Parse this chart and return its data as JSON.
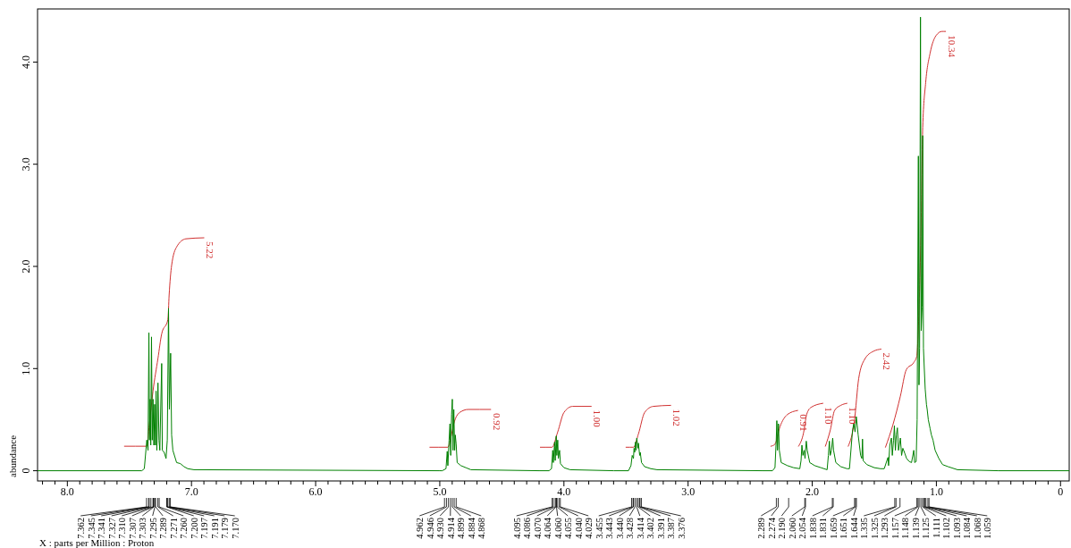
{
  "chart_data": {
    "type": "line",
    "xlabel": "X : parts per Million : Proton",
    "ylabel": "abundance",
    "xlim": [
      8.24,
      -0.07
    ],
    "ylim": [
      -0.1,
      4.52
    ],
    "xticks": [
      {
        "value": 8,
        "label": "8.0"
      },
      {
        "value": 7,
        "label": "7.0"
      },
      {
        "value": 6,
        "label": "6.0"
      },
      {
        "value": 5,
        "label": "5.0"
      },
      {
        "value": 4,
        "label": "4.0"
      },
      {
        "value": 3,
        "label": "3.0"
      },
      {
        "value": 2,
        "label": "2.0"
      },
      {
        "value": 1,
        "label": "1.0"
      },
      0,
      {
        "value": 8.2,
        "label": null
      },
      {
        "value": 8.1,
        "label": null
      },
      {
        "value": 7.9,
        "label": null
      },
      {
        "value": 7.8,
        "label": null
      },
      {
        "value": 7.7,
        "label": null
      },
      {
        "value": 7.6,
        "label": null
      },
      {
        "value": 7.5,
        "label": null
      },
      {
        "value": 7.4,
        "label": null
      },
      {
        "value": 7.3,
        "label": null
      },
      {
        "value": 7.2,
        "label": null
      },
      {
        "value": 7.1,
        "label": null
      },
      {
        "value": 6.9,
        "label": null
      },
      {
        "value": 6.8,
        "label": null
      },
      {
        "value": 6.7,
        "label": null
      },
      {
        "value": 6.6,
        "label": null
      },
      {
        "value": 6.5,
        "label": null
      },
      {
        "value": 6.4,
        "label": null
      },
      {
        "value": 6.3,
        "label": null
      },
      {
        "value": 6.2,
        "label": null
      },
      {
        "value": 6.1,
        "label": null
      },
      {
        "value": 5.9,
        "label": null
      },
      {
        "value": 5.8,
        "label": null
      },
      {
        "value": 5.7,
        "label": null
      },
      {
        "value": 5.6,
        "label": null
      },
      {
        "value": 5.5,
        "label": null
      },
      {
        "value": 5.4,
        "label": null
      },
      {
        "value": 5.3,
        "label": null
      },
      {
        "value": 5.2,
        "label": null
      },
      {
        "value": 5.1,
        "label": null
      },
      {
        "value": 4.9,
        "label": null
      },
      {
        "value": 4.8,
        "label": null
      },
      {
        "value": 4.7,
        "label": null
      },
      {
        "value": 4.6,
        "label": null
      },
      {
        "value": 4.5,
        "label": null
      },
      {
        "value": 4.4,
        "label": null
      },
      {
        "value": 4.3,
        "label": null
      },
      {
        "value": 4.2,
        "label": null
      },
      {
        "value": 4.1,
        "label": null
      },
      {
        "value": 3.9,
        "label": null
      },
      {
        "value": 3.8,
        "label": null
      },
      {
        "value": 3.7,
        "label": null
      },
      {
        "value": 3.6,
        "label": null
      },
      {
        "value": 3.5,
        "label": null
      },
      {
        "value": 3.4,
        "label": null
      },
      {
        "value": 3.3,
        "label": null
      },
      {
        "value": 3.2,
        "label": null
      },
      {
        "value": 3.1,
        "label": null
      },
      {
        "value": 2.9,
        "label": null
      },
      {
        "value": 2.8,
        "label": null
      },
      {
        "value": 2.7,
        "label": null
      },
      {
        "value": 2.6,
        "label": null
      },
      {
        "value": 2.5,
        "label": null
      },
      {
        "value": 2.4,
        "label": null
      },
      {
        "value": 2.3,
        "label": null
      },
      {
        "value": 2.2,
        "label": null
      },
      {
        "value": 2.1,
        "label": null
      },
      {
        "value": 1.9,
        "label": null
      },
      {
        "value": 1.8,
        "label": null
      },
      {
        "value": 1.7,
        "label": null
      },
      {
        "value": 1.6,
        "label": null
      },
      {
        "value": 1.5,
        "label": null
      },
      {
        "value": 1.4,
        "label": null
      },
      {
        "value": 1.3,
        "label": null
      },
      {
        "value": 1.2,
        "label": null
      },
      {
        "value": 1.1,
        "label": null
      },
      {
        "value": 0.9,
        "label": null
      },
      {
        "value": 0.8,
        "label": null
      },
      {
        "value": 0.7,
        "label": null
      },
      {
        "value": 0.6,
        "label": null
      },
      {
        "value": 0.5,
        "label": null
      },
      {
        "value": 0.4,
        "label": null
      },
      {
        "value": 0.3,
        "label": null
      },
      {
        "value": 0.2,
        "label": null
      },
      {
        "value": 0.1,
        "label": null
      }
    ],
    "yticks": [
      0,
      {
        "value": 1,
        "label": "1.0"
      },
      {
        "value": 2,
        "label": "2.0"
      },
      {
        "value": 3,
        "label": "3.0"
      },
      {
        "value": 4,
        "label": "4.0"
      }
    ],
    "series": [
      {
        "color": "#008000",
        "x": [
          8.24,
          7.4,
          7.38,
          7.36,
          7.35,
          7.343,
          7.338,
          7.333,
          7.328,
          7.322,
          7.316,
          7.31,
          7.303,
          7.297,
          7.29,
          7.285,
          7.279,
          7.27,
          7.262,
          7.255,
          7.24,
          7.235,
          7.22,
          7.205,
          7.195,
          7.185,
          7.178,
          7.168,
          7.16,
          7.15,
          7.12,
          7.09,
          7.06,
          7.03,
          6.98,
          5.0,
          4.98,
          4.95,
          4.94,
          4.935,
          4.925,
          4.918,
          4.912,
          4.905,
          4.899,
          4.893,
          4.887,
          4.88,
          4.875,
          4.868,
          4.86,
          4.83,
          4.79,
          4.75,
          4.2,
          4.12,
          4.1,
          4.09,
          4.085,
          4.075,
          4.07,
          4.062,
          4.057,
          4.05,
          4.045,
          4.035,
          4.028,
          4.0,
          3.95,
          3.6,
          3.48,
          3.46,
          3.45,
          3.44,
          3.435,
          3.43,
          3.425,
          3.42,
          3.413,
          3.405,
          3.4,
          3.39,
          3.385,
          3.375,
          3.35,
          3.3,
          3.25,
          2.4,
          2.32,
          2.3,
          2.29,
          2.285,
          2.28,
          2.272,
          2.265,
          2.25,
          2.2,
          2.15,
          2.1,
          2.09,
          2.083,
          2.075,
          2.065,
          2.058,
          2.048,
          2.04,
          2.02,
          1.98,
          1.93,
          1.88,
          1.87,
          1.862,
          1.855,
          1.845,
          1.835,
          1.828,
          1.81,
          1.77,
          1.72,
          1.7,
          1.685,
          1.675,
          1.665,
          1.655,
          1.645,
          1.638,
          1.63,
          1.62,
          1.61,
          1.6,
          1.595,
          1.59,
          1.56,
          1.5,
          1.45,
          1.42,
          1.39,
          1.385,
          1.375,
          1.362,
          1.355,
          1.345,
          1.338,
          1.33,
          1.322,
          1.314,
          1.305,
          1.29,
          1.28,
          1.27,
          1.254,
          1.24,
          1.218,
          1.2,
          1.182,
          1.175,
          1.163,
          1.155,
          1.145,
          1.14,
          1.135,
          1.128,
          1.122,
          1.115,
          1.11,
          1.104,
          1.098,
          1.09,
          1.08,
          1.074,
          1.065,
          1.05,
          1.04,
          1.027,
          1.01,
          0.98,
          0.95,
          0.906,
          0.83,
          0.5,
          -0.07
        ],
        "values": [
          0,
          0,
          0.02,
          0.3,
          0.2,
          1.35,
          0.3,
          0.7,
          0.25,
          1.31,
          0.3,
          0.7,
          0.25,
          0.65,
          0.25,
          0.78,
          0.2,
          0.86,
          0.3,
          0.2,
          1.05,
          0.2,
          0.18,
          0.12,
          0.3,
          1.59,
          0.6,
          1.15,
          0.35,
          0.2,
          0.08,
          0.07,
          0.04,
          0.02,
          0.01,
          0,
          0,
          0.02,
          0.19,
          0.05,
          0.3,
          0.46,
          0.15,
          0.55,
          0.7,
          0.2,
          0.6,
          0.2,
          0.35,
          0.26,
          0.08,
          0.05,
          0.03,
          0.01,
          0,
          0,
          0.02,
          0.2,
          0.08,
          0.28,
          0.1,
          0.34,
          0.15,
          0.3,
          0.12,
          0.2,
          0.07,
          0.03,
          0.01,
          0,
          0,
          0.05,
          0.15,
          0.12,
          0.22,
          0.18,
          0.28,
          0.2,
          0.32,
          0.22,
          0.27,
          0.15,
          0.18,
          0.08,
          0.04,
          0.02,
          0.01,
          0,
          0,
          0.03,
          0.3,
          0.49,
          0.2,
          0.46,
          0.2,
          0.08,
          0.05,
          0.03,
          0.02,
          0.1,
          0.25,
          0.15,
          0.2,
          0.12,
          0.29,
          0.2,
          0.08,
          0.05,
          0.03,
          0.01,
          0.15,
          0.29,
          0.15,
          0.2,
          0.32,
          0.2,
          0.08,
          0.04,
          0.02,
          0.02,
          0.25,
          0.4,
          0.46,
          0.38,
          0.53,
          0.45,
          0.35,
          0.25,
          0.15,
          0.12,
          0.31,
          0.1,
          0.06,
          0.03,
          0.02,
          0.02,
          0.13,
          0.05,
          0.25,
          0.32,
          0.15,
          0.3,
          0.44,
          0.2,
          0.35,
          0.42,
          0.2,
          0.32,
          0.15,
          0.22,
          0.17,
          0.12,
          0.09,
          0.08,
          0.2,
          0.08,
          0.09,
          0.5,
          3.08,
          0.84,
          1.2,
          4.44,
          1.37,
          1.6,
          3.28,
          1.2,
          1.02,
          0.8,
          0.65,
          0.6,
          0.5,
          0.41,
          0.35,
          0.3,
          0.2,
          0.12,
          0.06,
          0.04,
          0.01,
          0,
          0
        ]
      },
      {
        "color": "#d03030",
        "x": [
          7.54,
          7.36,
          7.34,
          7.31,
          7.27,
          7.24,
          7.19,
          7.18,
          7.16,
          7.12,
          7.045,
          6.9
        ],
        "values": [
          0.24,
          0.24,
          0.45,
          0.78,
          1.1,
          1.34,
          1.48,
          1.72,
          2.01,
          2.19,
          2.27,
          2.28
        ]
      },
      {
        "color": "#d03030",
        "x": [
          5.08,
          4.935,
          4.91,
          4.887,
          4.84,
          4.77,
          4.59
        ],
        "values": [
          0.23,
          0.23,
          0.33,
          0.46,
          0.57,
          0.6,
          0.6
        ]
      },
      {
        "color": "#d03030",
        "x": [
          4.19,
          4.096,
          4.05,
          4.0,
          3.93,
          3.78
        ],
        "values": [
          0.23,
          0.23,
          0.38,
          0.57,
          0.63,
          0.63
        ]
      },
      {
        "color": "#d03030",
        "x": [
          3.5,
          3.44,
          3.4,
          3.35,
          3.28,
          3.14
        ],
        "values": [
          0.23,
          0.23,
          0.36,
          0.57,
          0.63,
          0.64
        ]
      },
      {
        "color": "#d03030",
        "x": [
          2.333,
          2.3,
          2.26,
          2.2,
          2.117
        ],
        "values": [
          0.24,
          0.26,
          0.43,
          0.55,
          0.59
        ]
      },
      {
        "color": "#d03030",
        "x": [
          2.11,
          2.07,
          2.045,
          2.01,
          1.914
        ],
        "values": [
          0.24,
          0.37,
          0.55,
          0.62,
          0.66
        ]
      },
      {
        "color": "#d03030",
        "x": [
          1.894,
          1.854,
          1.82,
          1.77,
          1.72
        ],
        "values": [
          0.24,
          0.4,
          0.59,
          0.64,
          0.66
        ]
      },
      {
        "color": "#d03030",
        "x": [
          1.71,
          1.66,
          1.626,
          1.578,
          1.506,
          1.446
        ],
        "values": [
          0.24,
          0.49,
          0.9,
          1.09,
          1.17,
          1.19
        ]
      },
      {
        "color": "#d03030",
        "x": [
          1.41,
          1.35,
          1.29,
          1.242,
          1.182,
          1.158,
          1.146,
          1.122,
          1.11,
          1.086,
          1.05,
          1.002,
          0.955,
          0.926
        ],
        "values": [
          0.23,
          0.45,
          0.73,
          0.99,
          1.06,
          1.12,
          1.37,
          2.48,
          3.36,
          3.8,
          4.09,
          4.26,
          4.3,
          4.3
        ]
      }
    ],
    "annotations": [
      {
        "text": "5.22",
        "x": 6.9,
        "y": 2.28
      },
      {
        "text": "0.92",
        "x": 4.59,
        "y": 0.6
      },
      {
        "text": "1.00",
        "x": 3.78,
        "y": 0.63
      },
      {
        "text": "1.02",
        "x": 3.14,
        "y": 0.64
      },
      {
        "text": "0.91",
        "x": 2.117,
        "y": 0.59
      },
      {
        "text": "1.10",
        "x": 1.914,
        "y": 0.66
      },
      {
        "text": "1.10",
        "x": 1.72,
        "y": 0.66
      },
      {
        "text": "2.42",
        "x": 1.446,
        "y": 1.19
      },
      {
        "text": "10.34",
        "x": 0.926,
        "y": 4.3
      },
      {
        "text": "7.362",
        "x": 7.362
      },
      {
        "text": "7.345",
        "x": 7.345
      },
      {
        "text": "7.341",
        "x": 7.341
      },
      {
        "text": "7.327",
        "x": 7.327
      },
      {
        "text": "7.310",
        "x": 7.31
      },
      {
        "text": "7.307",
        "x": 7.307
      },
      {
        "text": "7.303",
        "x": 7.303
      },
      {
        "text": "7.295",
        "x": 7.295
      },
      {
        "text": "7.289",
        "x": 7.289
      },
      {
        "text": "7.271",
        "x": 7.271
      },
      {
        "text": "7.260",
        "x": 7.26
      },
      {
        "text": "7.200",
        "x": 7.2
      },
      {
        "text": "7.197",
        "x": 7.197
      },
      {
        "text": "7.191",
        "x": 7.191
      },
      {
        "text": "7.179",
        "x": 7.179
      },
      {
        "text": "7.170",
        "x": 7.17
      },
      {
        "text": "4.962",
        "x": 4.962
      },
      {
        "text": "4.946",
        "x": 4.946
      },
      {
        "text": "4.930",
        "x": 4.93
      },
      {
        "text": "4.914",
        "x": 4.914
      },
      {
        "text": "4.899",
        "x": 4.899
      },
      {
        "text": "4.884",
        "x": 4.884
      },
      {
        "text": "4.868",
        "x": 4.868
      },
      {
        "text": "4.095",
        "x": 4.095
      },
      {
        "text": "4.086",
        "x": 4.086
      },
      {
        "text": "4.070",
        "x": 4.07
      },
      {
        "text": "4.064",
        "x": 4.064
      },
      {
        "text": "4.060",
        "x": 4.06
      },
      {
        "text": "4.055",
        "x": 4.055
      },
      {
        "text": "4.040",
        "x": 4.04
      },
      {
        "text": "4.029",
        "x": 4.029
      },
      {
        "text": "3.455",
        "x": 3.455
      },
      {
        "text": "3.443",
        "x": 3.443
      },
      {
        "text": "3.440",
        "x": 3.44
      },
      {
        "text": "3.428",
        "x": 3.428
      },
      {
        "text": "3.414",
        "x": 3.414
      },
      {
        "text": "3.402",
        "x": 3.402
      },
      {
        "text": "3.391",
        "x": 3.391
      },
      {
        "text": "3.387",
        "x": 3.387
      },
      {
        "text": "3.376",
        "x": 3.376
      },
      {
        "text": "2.289",
        "x": 2.289
      },
      {
        "text": "2.274",
        "x": 2.274
      },
      {
        "text": "2.190",
        "x": 2.19
      },
      {
        "text": "2.060",
        "x": 2.06
      },
      {
        "text": "2.054",
        "x": 2.054
      },
      {
        "text": "1.838",
        "x": 1.838
      },
      {
        "text": "1.831",
        "x": 1.831
      },
      {
        "text": "1.659",
        "x": 1.659
      },
      {
        "text": "1.651",
        "x": 1.651
      },
      {
        "text": "1.644",
        "x": 1.644
      },
      {
        "text": "1.335",
        "x": 1.335
      },
      {
        "text": "1.325",
        "x": 1.325
      },
      {
        "text": "1.293",
        "x": 1.293
      },
      {
        "text": "1.157",
        "x": 1.157
      },
      {
        "text": "1.148",
        "x": 1.148
      },
      {
        "text": "1.139",
        "x": 1.139
      },
      {
        "text": "1.125",
        "x": 1.125
      },
      {
        "text": "1.111",
        "x": 1.111
      },
      {
        "text": "1.102",
        "x": 1.102
      },
      {
        "text": "1.093",
        "x": 1.093
      },
      {
        "text": "1.084",
        "x": 1.084
      },
      {
        "text": "1.068",
        "x": 1.068
      },
      {
        "text": "1.059",
        "x": 1.059
      }
    ]
  }
}
